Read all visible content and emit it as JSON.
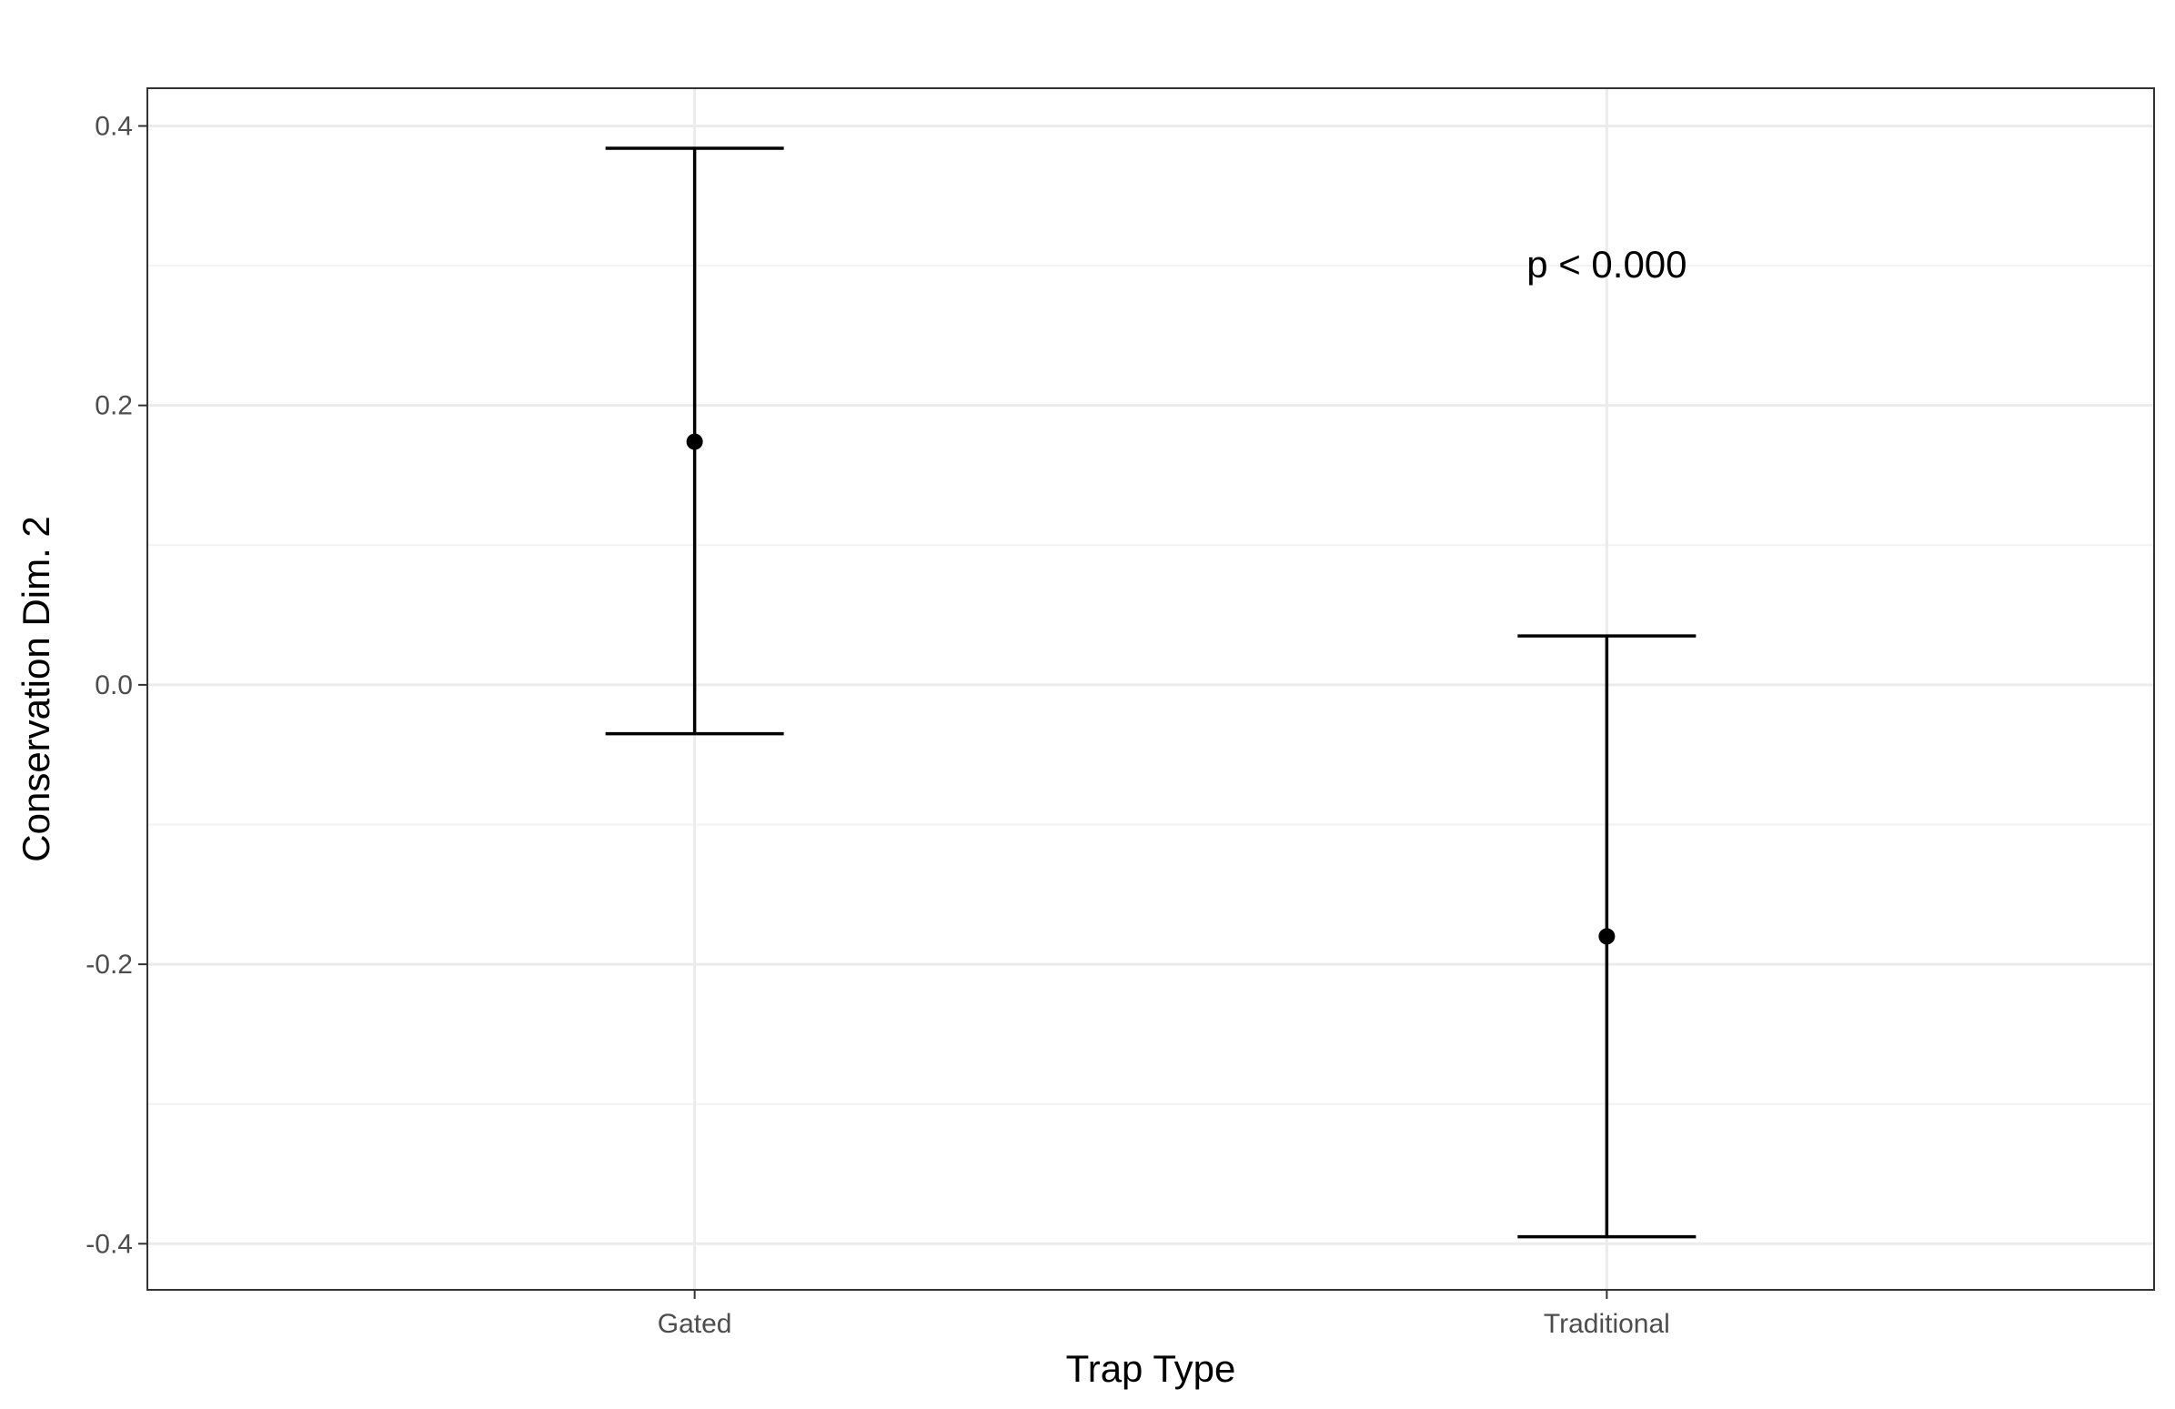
{
  "chart_data": {
    "type": "errorbar",
    "xlabel": "Trap Type",
    "ylabel": "Conservation Dim. 2",
    "categories": [
      "Gated",
      "Traditional"
    ],
    "points": [
      {
        "category": "Gated",
        "mean": 0.174,
        "lower": -0.035,
        "upper": 0.384
      },
      {
        "category": "Traditional",
        "mean": -0.18,
        "lower": -0.395,
        "upper": 0.035
      }
    ],
    "ylim": [
      -0.433,
      0.427
    ],
    "yticks": [
      -0.4,
      -0.2,
      0.0,
      0.2,
      0.4
    ],
    "ytick_labels": [
      "-0.4",
      "-0.2",
      "0.0",
      "0.2",
      "0.4"
    ],
    "annotation": {
      "text": "p < 0.000",
      "category": "Traditional",
      "y": 0.3
    },
    "grid": true,
    "colors": {
      "marks": "#000000",
      "grid_major": "#ebebeb",
      "grid_minor": "#f2f2f2",
      "panel_border": "#333333",
      "tick_text": "#4d4d4d"
    }
  }
}
